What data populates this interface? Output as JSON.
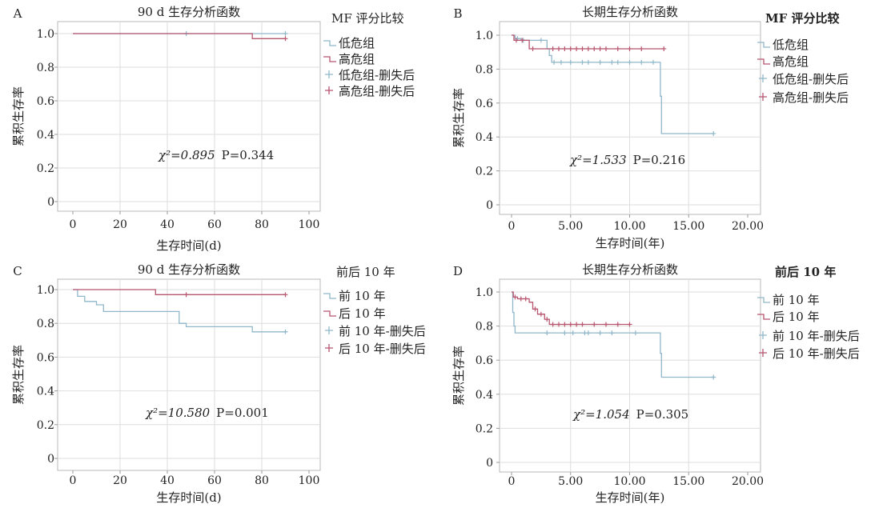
{
  "chart_data": [
    {
      "panel_label": "A",
      "type": "line",
      "title": "90 d 生存分析函数",
      "xlabel": "生存时间(d)",
      "ylabel": "累积生存率",
      "xlim": [
        0,
        100
      ],
      "ylim": [
        0,
        1.0
      ],
      "xticks": [
        "0",
        "20",
        "40",
        "60",
        "80",
        "100"
      ],
      "yticks": [
        "0",
        "0.2",
        "0.4",
        "0.6",
        "0.8",
        "1.0"
      ],
      "legend_title": "MF 评分比较",
      "legend": [
        "低危组",
        "高危组",
        "低危组-删失后",
        "高危组-删失后"
      ],
      "annotation": {
        "stat": "χ²=0.895",
        "p": "P=0.344"
      },
      "series": [
        {
          "name": "低危组",
          "color": "#8fb7c9",
          "steps": [
            [
              0,
              1.0
            ],
            [
              90,
              1.0
            ]
          ],
          "censored": [
            [
              48,
              1.0
            ],
            [
              90,
              1.0
            ]
          ]
        },
        {
          "name": "高危组",
          "color": "#b8556f",
          "steps": [
            [
              0,
              1.0
            ],
            [
              76,
              1.0
            ],
            [
              76,
              0.97
            ],
            [
              90,
              0.97
            ]
          ],
          "censored": [
            [
              90,
              0.97
            ]
          ]
        }
      ]
    },
    {
      "panel_label": "B",
      "type": "line",
      "title": "长期生存分析函数",
      "xlabel": "生存时间(年)",
      "ylabel": "累积生存率",
      "xlim": [
        0,
        20
      ],
      "ylim": [
        0,
        1.0
      ],
      "xticks": [
        "0",
        "5.00",
        "10.00",
        "15.00",
        "20.00"
      ],
      "yticks": [
        "0",
        "0.2",
        "0.4",
        "0.6",
        "0.8",
        "1.0"
      ],
      "legend_title": "MF 评分比较",
      "legend": [
        "低危组",
        "高危组",
        "低危组-删失后",
        "高危组-删失后"
      ],
      "annotation": {
        "stat": "χ²=1.533",
        "p": "P=0.216"
      },
      "series": [
        {
          "name": "低危组",
          "color": "#8fb7c9",
          "steps": [
            [
              0,
              1.0
            ],
            [
              0.3,
              1.0
            ],
            [
              0.3,
              0.98
            ],
            [
              0.8,
              0.98
            ],
            [
              0.8,
              0.97
            ],
            [
              3.0,
              0.97
            ],
            [
              3.0,
              0.92
            ],
            [
              3.2,
              0.92
            ],
            [
              3.2,
              0.88
            ],
            [
              3.4,
              0.88
            ],
            [
              3.4,
              0.84
            ],
            [
              12.6,
              0.84
            ],
            [
              12.6,
              0.64
            ],
            [
              12.7,
              0.64
            ],
            [
              12.7,
              0.42
            ],
            [
              17.1,
              0.42
            ]
          ],
          "censored": [
            [
              0.5,
              0.98
            ],
            [
              1.0,
              0.97
            ],
            [
              2.5,
              0.97
            ],
            [
              3.6,
              0.84
            ],
            [
              4.2,
              0.84
            ],
            [
              5.0,
              0.84
            ],
            [
              6.0,
              0.84
            ],
            [
              6.5,
              0.84
            ],
            [
              7.5,
              0.84
            ],
            [
              8.5,
              0.84
            ],
            [
              9.0,
              0.84
            ],
            [
              10.0,
              0.84
            ],
            [
              11.0,
              0.84
            ],
            [
              12.0,
              0.84
            ],
            [
              17.1,
              0.42
            ]
          ]
        },
        {
          "name": "高危组",
          "color": "#b8556f",
          "steps": [
            [
              0,
              1.0
            ],
            [
              0.2,
              1.0
            ],
            [
              0.2,
              0.97
            ],
            [
              1.5,
              0.97
            ],
            [
              1.5,
              0.92
            ],
            [
              12.9,
              0.92
            ]
          ],
          "censored": [
            [
              0.4,
              0.97
            ],
            [
              0.9,
              0.97
            ],
            [
              1.8,
              0.92
            ],
            [
              3.5,
              0.92
            ],
            [
              4.0,
              0.92
            ],
            [
              4.5,
              0.92
            ],
            [
              5.0,
              0.92
            ],
            [
              5.5,
              0.92
            ],
            [
              6.0,
              0.92
            ],
            [
              6.5,
              0.92
            ],
            [
              7.0,
              0.92
            ],
            [
              7.5,
              0.92
            ],
            [
              8.0,
              0.92
            ],
            [
              9.0,
              0.92
            ],
            [
              10.0,
              0.92
            ],
            [
              11.0,
              0.92
            ],
            [
              12.9,
              0.92
            ]
          ]
        }
      ]
    },
    {
      "panel_label": "C",
      "type": "line",
      "title": "90 d 生存分析函数",
      "xlabel": "生存时间(d)",
      "ylabel": "累积生存率",
      "xlim": [
        0,
        100
      ],
      "ylim": [
        0,
        1.0
      ],
      "xticks": [
        "0",
        "20",
        "40",
        "60",
        "80",
        "100"
      ],
      "yticks": [
        "0",
        "0.2",
        "0.4",
        "0.6",
        "0.8",
        "1.0"
      ],
      "legend_title": "前后 10 年",
      "legend": [
        "前 10 年",
        "后 10 年",
        "前 10 年-删失后",
        "后 10 年-删失后"
      ],
      "annotation": {
        "stat": "χ²=10.580",
        "p": "P=0.001"
      },
      "series": [
        {
          "name": "前 10 年",
          "color": "#8fb7c9",
          "steps": [
            [
              0,
              1.0
            ],
            [
              2,
              1.0
            ],
            [
              2,
              0.96
            ],
            [
              5,
              0.96
            ],
            [
              5,
              0.93
            ],
            [
              10,
              0.93
            ],
            [
              10,
              0.91
            ],
            [
              13,
              0.91
            ],
            [
              13,
              0.87
            ],
            [
              45,
              0.87
            ],
            [
              45,
              0.8
            ],
            [
              48,
              0.8
            ],
            [
              48,
              0.78
            ],
            [
              76,
              0.78
            ],
            [
              76,
              0.75
            ],
            [
              90,
              0.75
            ]
          ],
          "censored": [
            [
              90,
              0.75
            ]
          ]
        },
        {
          "name": "后 10 年",
          "color": "#b8556f",
          "steps": [
            [
              0,
              1.0
            ],
            [
              35,
              1.0
            ],
            [
              35,
              0.97
            ],
            [
              90,
              0.97
            ]
          ],
          "censored": [
            [
              48,
              0.97
            ],
            [
              90,
              0.97
            ]
          ]
        }
      ]
    },
    {
      "panel_label": "D",
      "type": "line",
      "title": "长期生存分析函数",
      "xlabel": "生存时间(年)",
      "ylabel": "累积生存率",
      "xlim": [
        0,
        20
      ],
      "ylim": [
        0,
        1.0
      ],
      "xticks": [
        "0",
        "5.00",
        "10.00",
        "15.00",
        "20.00"
      ],
      "yticks": [
        "0",
        "0.2",
        "0.4",
        "0.6",
        "0.8",
        "1.0"
      ],
      "legend_title": "前后 10 年",
      "legend": [
        "前 10 年",
        "后 10 年",
        "前 10 年-删失后",
        "后 10 年-删失后"
      ],
      "annotation": {
        "stat": "χ²=1.054",
        "p": "P=0.305"
      },
      "series": [
        {
          "name": "前 10 年",
          "color": "#8fb7c9",
          "steps": [
            [
              0,
              1.0
            ],
            [
              0.1,
              1.0
            ],
            [
              0.1,
              0.88
            ],
            [
              0.2,
              0.88
            ],
            [
              0.2,
              0.8
            ],
            [
              0.3,
              0.8
            ],
            [
              0.3,
              0.76
            ],
            [
              12.6,
              0.76
            ],
            [
              12.6,
              0.64
            ],
            [
              12.7,
              0.64
            ],
            [
              12.7,
              0.5
            ],
            [
              17.1,
              0.5
            ]
          ],
          "censored": [
            [
              3.0,
              0.76
            ],
            [
              4.5,
              0.76
            ],
            [
              5.2,
              0.76
            ],
            [
              6.2,
              0.76
            ],
            [
              6.5,
              0.76
            ],
            [
              7.5,
              0.76
            ],
            [
              8.5,
              0.76
            ],
            [
              10.5,
              0.76
            ],
            [
              17.1,
              0.5
            ]
          ]
        },
        {
          "name": "后 10 年",
          "color": "#b8556f",
          "steps": [
            [
              0,
              1.0
            ],
            [
              0.15,
              1.0
            ],
            [
              0.15,
              0.97
            ],
            [
              0.5,
              0.97
            ],
            [
              0.5,
              0.96
            ],
            [
              1.5,
              0.96
            ],
            [
              1.5,
              0.94
            ],
            [
              1.8,
              0.94
            ],
            [
              1.8,
              0.9
            ],
            [
              2.2,
              0.9
            ],
            [
              2.2,
              0.87
            ],
            [
              2.8,
              0.87
            ],
            [
              2.8,
              0.84
            ],
            [
              3.2,
              0.84
            ],
            [
              3.2,
              0.81
            ],
            [
              10.0,
              0.81
            ]
          ],
          "censored": [
            [
              0.3,
              0.97
            ],
            [
              0.8,
              0.96
            ],
            [
              1.2,
              0.96
            ],
            [
              2.0,
              0.9
            ],
            [
              2.5,
              0.87
            ],
            [
              3.0,
              0.84
            ],
            [
              3.5,
              0.81
            ],
            [
              4.0,
              0.81
            ],
            [
              4.5,
              0.81
            ],
            [
              5.0,
              0.81
            ],
            [
              5.5,
              0.81
            ],
            [
              6.0,
              0.81
            ],
            [
              7.0,
              0.81
            ],
            [
              8.0,
              0.81
            ],
            [
              9.0,
              0.81
            ],
            [
              10.0,
              0.81
            ]
          ]
        }
      ]
    }
  ]
}
